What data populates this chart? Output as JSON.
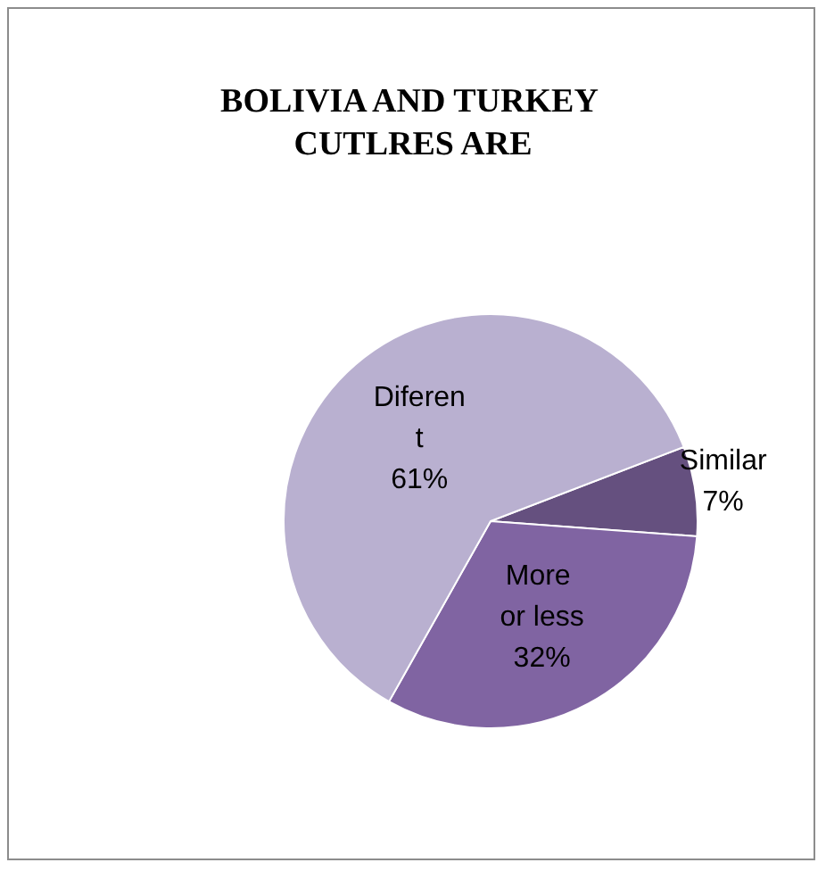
{
  "chart_data": {
    "type": "pie",
    "title": "BOLIVIA AND TURKEY CUTLRES ARE",
    "categories": [
      "Similar",
      "More or less",
      "Diferent"
    ],
    "values": [
      7,
      32,
      61
    ],
    "value_labels": [
      "7%",
      "32%",
      "61%"
    ],
    "colors": [
      "#65507f",
      "#8064a2",
      "#b9b0d0"
    ],
    "legend": false
  }
}
